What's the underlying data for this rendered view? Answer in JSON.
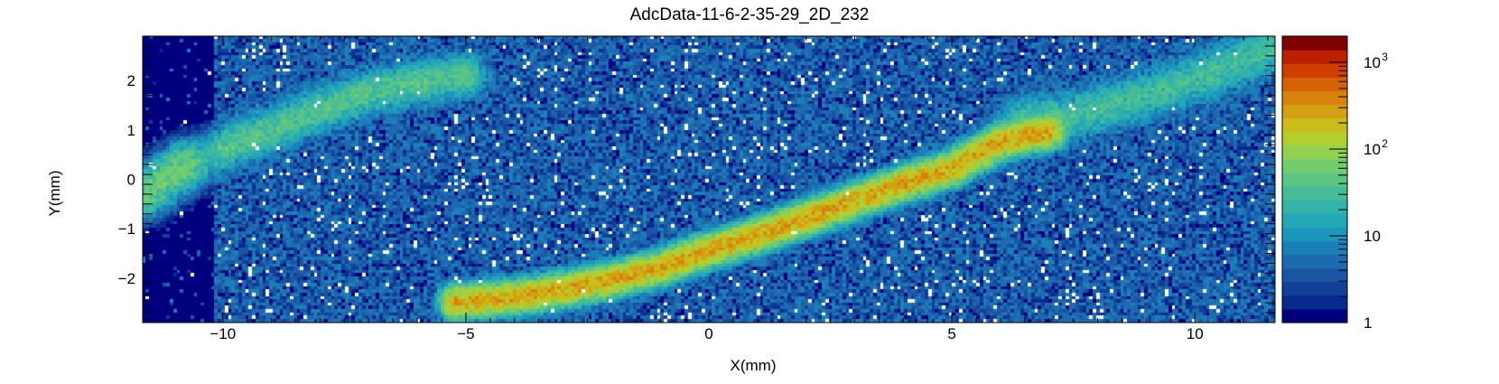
{
  "chart_data": {
    "type": "heatmap",
    "title": "AdcData-11-6-2-35-29_2D_232",
    "xlabel": "X(mm)",
    "ylabel": "Y(mm)",
    "xlim": [
      -11.65,
      11.65
    ],
    "ylim": [
      -2.9,
      2.9
    ],
    "x_ticks": [
      -10,
      -5,
      0,
      5,
      10
    ],
    "x_tick_labels": [
      "−10",
      "−5",
      "0",
      "5",
      "10"
    ],
    "y_ticks": [
      -2,
      -1,
      0,
      1,
      2
    ],
    "y_tick_labels": [
      "−2",
      "−1",
      "0",
      "1",
      "2"
    ],
    "z_scale": "log",
    "zlim": [
      1,
      2000
    ],
    "z_ticks": [
      {
        "value": 1,
        "base": "1",
        "exp": ""
      },
      {
        "value": 10,
        "base": "10",
        "exp": ""
      },
      {
        "value": 100,
        "base": "10",
        "exp": "2"
      },
      {
        "value": 1000,
        "base": "10",
        "exp": "3"
      }
    ],
    "grid": false,
    "low_count_region": {
      "x_from": -11.65,
      "x_to": -10.2
    },
    "ridges": [
      {
        "name": "main-band",
        "peak": 300,
        "width": 0.16,
        "points": [
          [
            -5.2,
            -2.5
          ],
          [
            -4,
            -2.4
          ],
          [
            -3,
            -2.25
          ],
          [
            -2,
            -2.05
          ],
          [
            -1,
            -1.8
          ],
          [
            0,
            -1.45
          ],
          [
            1,
            -1.15
          ],
          [
            2,
            -0.8
          ],
          [
            3,
            -0.45
          ],
          [
            4,
            -0.1
          ],
          [
            5,
            0.2
          ],
          [
            6,
            0.75
          ],
          [
            7,
            0.95
          ]
        ]
      },
      {
        "name": "upper-band",
        "peak": 40,
        "width": 0.22,
        "points": [
          [
            -10,
            0.6
          ],
          [
            -9,
            1.0
          ],
          [
            -8,
            1.4
          ],
          [
            -7,
            1.75
          ],
          [
            -6,
            1.95
          ],
          [
            -5,
            2.1
          ]
        ]
      },
      {
        "name": "right-band",
        "peak": 30,
        "width": 0.25,
        "points": [
          [
            6.5,
            1.2
          ],
          [
            7.5,
            1.3
          ],
          [
            8.5,
            1.55
          ],
          [
            9.5,
            1.85
          ],
          [
            10.5,
            2.2
          ],
          [
            11.5,
            2.6
          ]
        ]
      },
      {
        "name": "left-blob",
        "peak": 60,
        "width": 0.25,
        "points": [
          [
            -11.6,
            -0.3
          ],
          [
            -11.1,
            0.05
          ],
          [
            -10.7,
            0.3
          ]
        ]
      }
    ],
    "background_level": 3,
    "palette": [
      "#00007f",
      "#082a8c",
      "#113f98",
      "#1a55a4",
      "#1d6ab0",
      "#1c80b8",
      "#1d96bc",
      "#23a8b7",
      "#33b3aa",
      "#46bc98",
      "#5ac585",
      "#73cd6e",
      "#92d250",
      "#b3cf2f",
      "#cabd1b",
      "#d3a012",
      "#d6820c",
      "#d66206",
      "#cf3f02",
      "#bc2000",
      "#7f0000"
    ],
    "colors": {
      "frame": "#000000",
      "background": "#ffffff"
    }
  }
}
